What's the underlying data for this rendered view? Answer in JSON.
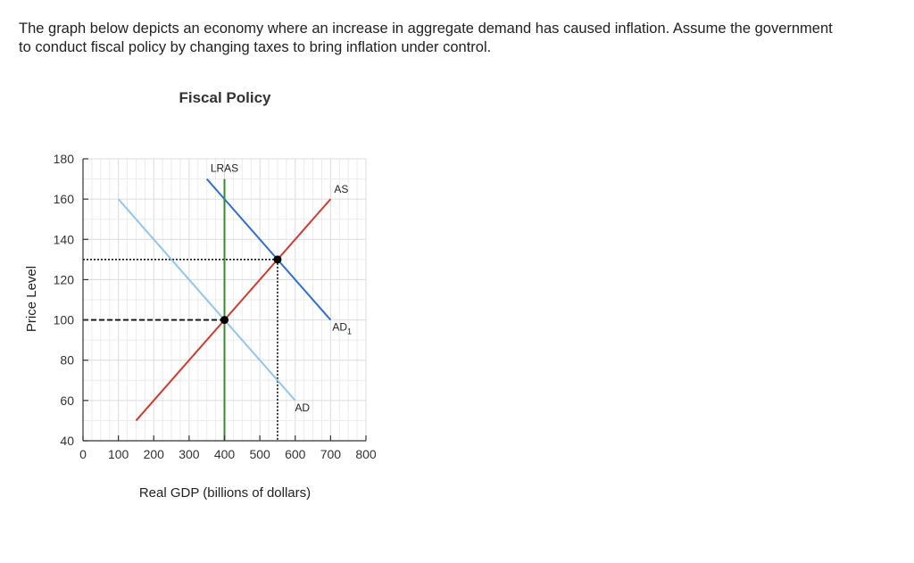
{
  "question": {
    "line1": "The graph below depicts an economy where an increase in aggregate demand has caused inflation. Assume the government",
    "line2": "to conduct fiscal policy by changing taxes to bring inflation under control."
  },
  "chart_data": {
    "type": "line",
    "title": "Fiscal Policy",
    "xlabel": "Real GDP (billions of dollars)",
    "ylabel": "Price Level",
    "xlim": [
      0,
      800
    ],
    "ylim": [
      40,
      180
    ],
    "x_ticks": [
      "0",
      "100",
      "200",
      "300",
      "400",
      "500",
      "600",
      "700",
      "800"
    ],
    "y_ticks": [
      "40",
      "60",
      "80",
      "100",
      "120",
      "140",
      "160",
      "180"
    ],
    "grid": true,
    "series": [
      {
        "name": "AS",
        "color": "#d33a2c",
        "points": [
          [
            150,
            50
          ],
          [
            700,
            160
          ]
        ]
      },
      {
        "name": "AD",
        "color": "#90c6ee",
        "points": [
          [
            100,
            160
          ],
          [
            600,
            60
          ]
        ]
      },
      {
        "name": "AD1",
        "label_main": "AD",
        "label_sub": "1",
        "color": "#2f6fd8",
        "points": [
          [
            350,
            170
          ],
          [
            700,
            100
          ]
        ]
      },
      {
        "name": "LRAS",
        "color": "#3a8a2e",
        "points": [
          [
            400,
            40
          ],
          [
            400,
            170
          ]
        ]
      }
    ],
    "equilibria": [
      {
        "x": 400,
        "y": 100,
        "guide_style": "dashed"
      },
      {
        "x": 550,
        "y": 130,
        "guide_style": "dotted"
      }
    ]
  }
}
